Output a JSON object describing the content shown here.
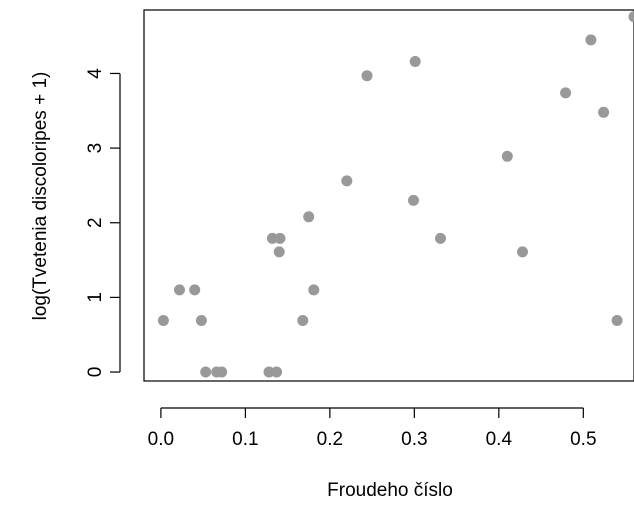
{
  "chart_data": {
    "type": "scatter",
    "title": "",
    "xlabel": "Froudeho číslo",
    "ylabel": "log(Tvetenia discoloripes + 1)",
    "xlim": [
      -0.02,
      0.56
    ],
    "ylim": [
      -0.12,
      4.85
    ],
    "xticks": [
      0.0,
      0.1,
      0.2,
      0.3,
      0.4,
      0.5
    ],
    "xtick_labels": [
      "0.0",
      "0.1",
      "0.2",
      "0.3",
      "0.4",
      "0.5"
    ],
    "yticks": [
      0,
      1,
      2,
      3,
      4
    ],
    "ytick_labels": [
      "0",
      "1",
      "2",
      "3",
      "4"
    ],
    "grid": false,
    "legend": "none",
    "point_color": "#999999",
    "points": [
      {
        "x": 0.003,
        "y": 0.69
      },
      {
        "x": 0.022,
        "y": 1.1
      },
      {
        "x": 0.04,
        "y": 1.1
      },
      {
        "x": 0.048,
        "y": 0.69
      },
      {
        "x": 0.053,
        "y": 0.0
      },
      {
        "x": 0.066,
        "y": 0.0
      },
      {
        "x": 0.072,
        "y": 0.0
      },
      {
        "x": 0.128,
        "y": 0.0
      },
      {
        "x": 0.137,
        "y": 0.0
      },
      {
        "x": 0.132,
        "y": 1.79
      },
      {
        "x": 0.141,
        "y": 1.79
      },
      {
        "x": 0.14,
        "y": 1.61
      },
      {
        "x": 0.168,
        "y": 0.69
      },
      {
        "x": 0.175,
        "y": 2.08
      },
      {
        "x": 0.181,
        "y": 1.1
      },
      {
        "x": 0.22,
        "y": 2.56
      },
      {
        "x": 0.244,
        "y": 3.97
      },
      {
        "x": 0.299,
        "y": 2.3
      },
      {
        "x": 0.301,
        "y": 4.16
      },
      {
        "x": 0.331,
        "y": 1.79
      },
      {
        "x": 0.41,
        "y": 2.89
      },
      {
        "x": 0.428,
        "y": 1.61
      },
      {
        "x": 0.479,
        "y": 3.74
      },
      {
        "x": 0.509,
        "y": 4.45
      },
      {
        "x": 0.524,
        "y": 3.48
      },
      {
        "x": 0.54,
        "y": 0.69
      },
      {
        "x": 0.56,
        "y": 4.76
      }
    ]
  }
}
